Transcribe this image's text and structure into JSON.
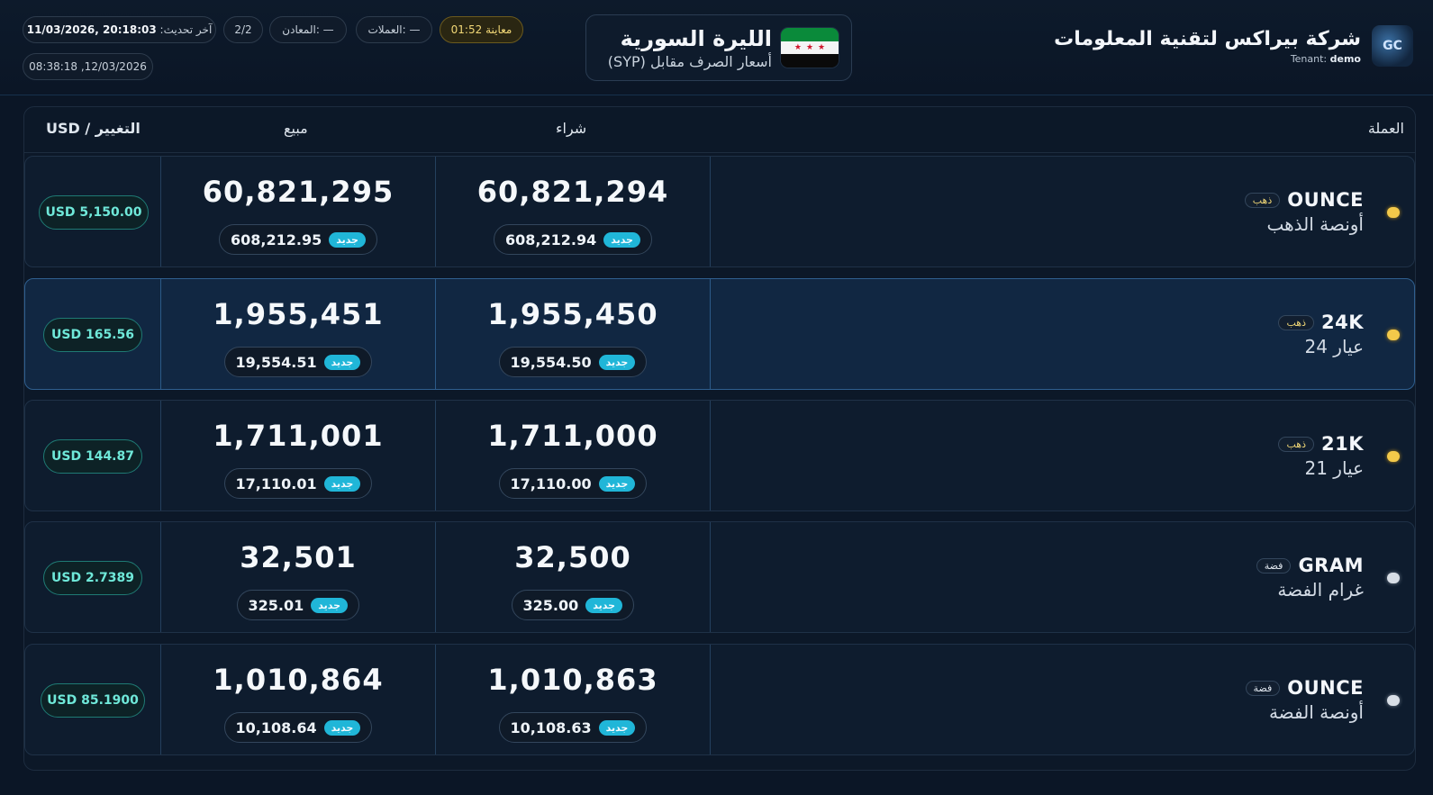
{
  "header": {
    "company_name": "شركة بيراكس لتقنية المعلومات",
    "tenant_label": "Tenant:",
    "tenant_value": "demo",
    "logo_text": "GC",
    "currency_title": "الليرة السورية",
    "currency_subtitle": "أسعار الصرف مقابل (SYP)",
    "preview": "معاينة 01:52",
    "currencies": "العملات: —",
    "metals": "المعادن: —",
    "page": "2/2",
    "last_update_label": "آخر تحديث:",
    "last_update_value": "11/03/2026, 20:18:03",
    "second_timestamp": "08:38:18 ,12/03/2026"
  },
  "table": {
    "col_currency": "العملة",
    "col_buy": "شراء",
    "col_sell": "مبيع",
    "col_change": "التغيير / USD",
    "new_label": "جديد",
    "rows": [
      {
        "unit": "OUNCE",
        "tag": "ذهب",
        "metal": "gold",
        "ar_name": "أونصة الذهب",
        "buy": "60,821,294",
        "buy_sub": "608,212.94",
        "sell": "60,821,295",
        "sell_sub": "608,212.95",
        "usd": "USD 5,150.00"
      },
      {
        "unit": "24K",
        "tag": "ذهب",
        "metal": "gold",
        "ar_name": "عيار 24",
        "buy": "1,955,450",
        "buy_sub": "19,554.50",
        "sell": "1,955,451",
        "sell_sub": "19,554.51",
        "usd": "USD 165.56"
      },
      {
        "unit": "21K",
        "tag": "ذهب",
        "metal": "gold",
        "ar_name": "عيار 21",
        "buy": "1,711,000",
        "buy_sub": "17,110.00",
        "sell": "1,711,001",
        "sell_sub": "17,110.01",
        "usd": "USD 144.87"
      },
      {
        "unit": "GRAM",
        "tag": "فضة",
        "metal": "silver",
        "ar_name": "غرام الفضة",
        "buy": "32,500",
        "buy_sub": "325.00",
        "sell": "32,501",
        "sell_sub": "325.01",
        "usd": "USD 2.7389"
      },
      {
        "unit": "OUNCE",
        "tag": "فضة",
        "metal": "silver",
        "ar_name": "أونصة الفضة",
        "buy": "1,010,863",
        "buy_sub": "10,108.63",
        "sell": "1,010,864",
        "sell_sub": "10,108.64",
        "usd": "USD 85.1900"
      }
    ]
  }
}
